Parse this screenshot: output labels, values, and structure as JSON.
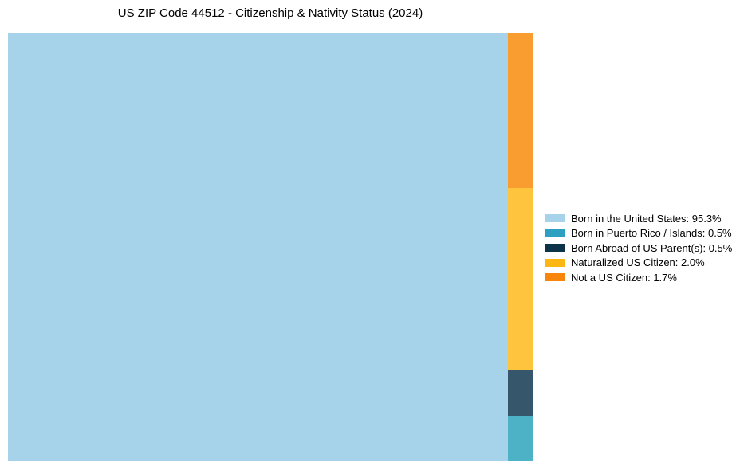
{
  "page": {
    "background_color": "#ffffff"
  },
  "chart_data": {
    "type": "treemap",
    "title": "US ZIP Code 44512 - Citizenship & Nativity Status (2024)",
    "unit": "%",
    "legend_position": "right",
    "grid": false,
    "categories": [
      "Born in the United States",
      "Born in Puerto Rico / Islands",
      "Born Abroad of US Parent(s)",
      "Naturalized US Citizen",
      "Not a US Citizen"
    ],
    "values": [
      95.3,
      0.5,
      0.5,
      2.0,
      1.7
    ],
    "legend_labels": [
      "Born in the United States: 95.3%",
      "Born in Puerto Rico / Islands: 0.5%",
      "Born Abroad of US Parent(s): 0.5%",
      "Naturalized US Citizen: 2.0%",
      "Not a US Citizen: 1.7%"
    ],
    "legend_colors": [
      "#a6d3ea",
      "#2d9fc0",
      "#0d3349",
      "#fdb713",
      "#f8860b"
    ],
    "rect_colors": [
      "#a6d3ea",
      "#4db2c5",
      "#36566b",
      "#fec43d",
      "#f99d30"
    ]
  }
}
